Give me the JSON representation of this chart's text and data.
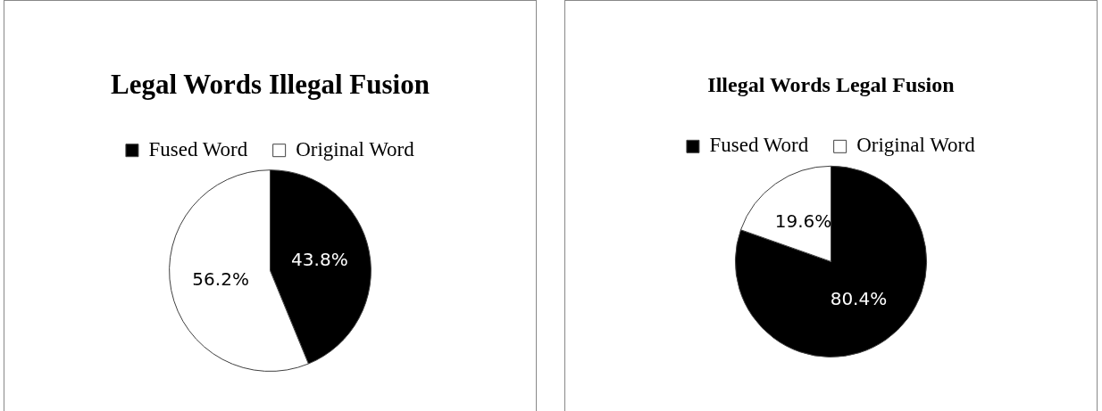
{
  "chart_data": [
    {
      "type": "pie",
      "title": "Legal Words Illegal Fusion",
      "categories": [
        "Fused Word",
        "Original Word"
      ],
      "values": [
        43.8,
        56.2
      ],
      "colors": [
        "#000000",
        "#ffffff"
      ],
      "value_labels": [
        "43.8%",
        "56.2%"
      ],
      "legend": "top"
    },
    {
      "type": "pie",
      "title": "Illegal Words Legal Fusion",
      "categories": [
        "Fused Word",
        "Original Word"
      ],
      "values": [
        80.4,
        19.6
      ],
      "colors": [
        "#000000",
        "#ffffff"
      ],
      "value_labels": [
        "80.4%",
        "19.6%"
      ],
      "legend": "top"
    }
  ]
}
